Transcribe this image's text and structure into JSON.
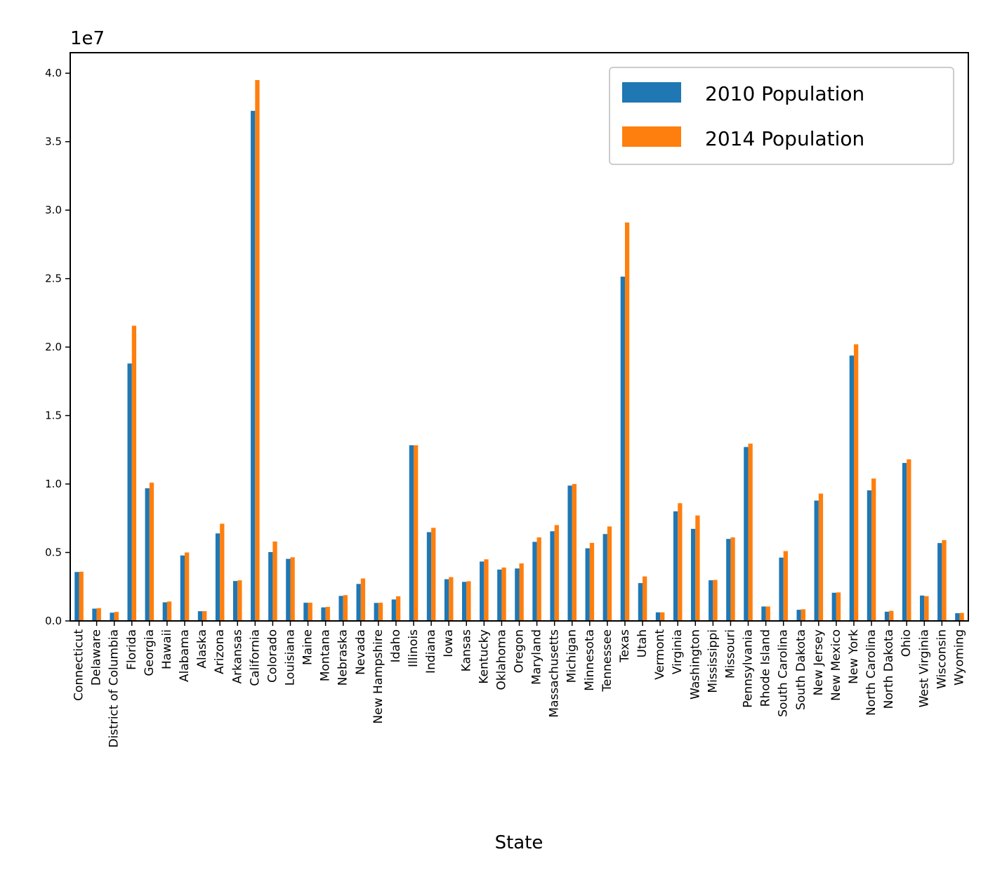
{
  "chart_data": {
    "type": "bar",
    "xlabel": "State",
    "ylabel": "",
    "y_offset_label": "1e7",
    "y_scale": 10000000,
    "ylim": [
      0,
      4.15
    ],
    "yticks": [
      0.0,
      0.5,
      1.0,
      1.5,
      2.0,
      2.5,
      3.0,
      3.5,
      4.0
    ],
    "ytick_labels": [
      "0.0",
      "0.5",
      "1.0",
      "1.5",
      "2.0",
      "2.5",
      "3.0",
      "3.5",
      "4.0"
    ],
    "grid": false,
    "legend_position": "top-right",
    "categories": [
      "Connecticut",
      "Delaware",
      "District of Columbia",
      "Florida",
      "Georgia",
      "Hawaii",
      "Alabama",
      "Alaska",
      "Arizona",
      "Arkansas",
      "California",
      "Colorado",
      "Louisiana",
      "Maine",
      "Montana",
      "Nebraska",
      "Nevada",
      "New Hampshire",
      "Idaho",
      "Illinois",
      "Indiana",
      "Iowa",
      "Kansas",
      "Kentucky",
      "Oklahoma",
      "Oregon",
      "Maryland",
      "Massachusetts",
      "Michigan",
      "Minnesota",
      "Tennessee",
      "Texas",
      "Utah",
      "Vermont",
      "Virginia",
      "Washington",
      "Mississippi",
      "Missouri",
      "Pennsylvania",
      "Rhode Island",
      "South Carolina",
      "South Dakota",
      "New Jersey",
      "New Mexico",
      "New York",
      "North Carolina",
      "North Dakota",
      "Ohio",
      "West Virginia",
      "Wisconsin",
      "Wyoming"
    ],
    "series": [
      {
        "name": "2010 Population",
        "color": "#1f77b4",
        "values": [
          0.3574,
          0.0898,
          0.0602,
          1.88,
          0.9688,
          0.136,
          0.478,
          0.071,
          0.6392,
          0.2916,
          3.7254,
          0.5029,
          0.4533,
          0.1328,
          0.0989,
          0.1826,
          0.2701,
          0.1316,
          0.1568,
          1.2831,
          0.6484,
          0.3046,
          0.2853,
          0.4339,
          0.3751,
          0.3831,
          0.5774,
          0.6548,
          0.9884,
          0.5304,
          0.6346,
          2.5146,
          0.2764,
          0.0626,
          0.8001,
          0.6725,
          0.2968,
          0.5989,
          1.2702,
          0.1053,
          0.4625,
          0.0814,
          0.8792,
          0.2059,
          1.9378,
          0.9535,
          0.0673,
          1.1537,
          0.1853,
          0.5687,
          0.0564
        ]
      },
      {
        "name": "2014 Population",
        "color": "#ff7f0e",
        "values": [
          0.3597,
          0.0936,
          0.0658,
          2.156,
          1.0097,
          0.142,
          0.5,
          0.0717,
          0.71,
          0.2966,
          3.95,
          0.58,
          0.465,
          0.133,
          0.1024,
          0.1882,
          0.31,
          0.133,
          0.18,
          1.2826,
          0.68,
          0.32,
          0.29,
          0.45,
          0.39,
          0.42,
          0.61,
          0.7,
          1.0,
          0.57,
          0.69,
          2.91,
          0.325,
          0.0627,
          0.86,
          0.77,
          0.2994,
          0.61,
          1.295,
          0.1056,
          0.51,
          0.0853,
          0.93,
          0.2085,
          2.02,
          1.04,
          0.074,
          1.18,
          0.181,
          0.59,
          0.0584
        ]
      }
    ]
  }
}
